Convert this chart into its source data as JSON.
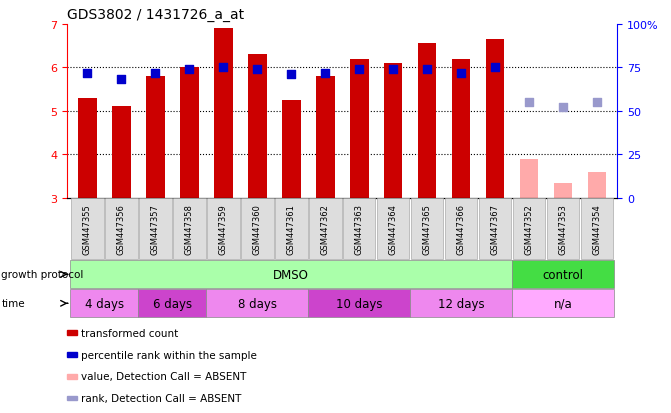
{
  "title": "GDS3802 / 1431726_a_at",
  "samples": [
    "GSM447355",
    "GSM447356",
    "GSM447357",
    "GSM447358",
    "GSM447359",
    "GSM447360",
    "GSM447361",
    "GSM447362",
    "GSM447363",
    "GSM447364",
    "GSM447365",
    "GSM447366",
    "GSM447367",
    "GSM447352",
    "GSM447353",
    "GSM447354"
  ],
  "bar_values": [
    5.3,
    5.1,
    5.8,
    6.0,
    6.9,
    6.3,
    5.25,
    5.8,
    6.2,
    6.1,
    6.55,
    6.2,
    6.65,
    3.9,
    3.35,
    3.6
  ],
  "bar_absent": [
    false,
    false,
    false,
    false,
    false,
    false,
    false,
    false,
    false,
    false,
    false,
    false,
    false,
    true,
    true,
    true
  ],
  "percentile_right": [
    72,
    68,
    72,
    74,
    75,
    74,
    71,
    72,
    74,
    74,
    74,
    72,
    75,
    55,
    52,
    55
  ],
  "percentile_absent": [
    false,
    false,
    false,
    false,
    false,
    false,
    false,
    false,
    false,
    false,
    false,
    false,
    false,
    true,
    true,
    true
  ],
  "bar_color_present": "#cc0000",
  "bar_color_absent": "#ffaaaa",
  "dot_color_present": "#0000cc",
  "dot_color_absent": "#9999cc",
  "ylim_left": [
    3,
    7
  ],
  "ylim_right": [
    0,
    100
  ],
  "yticks_left": [
    3,
    4,
    5,
    6,
    7
  ],
  "yticks_right": [
    0,
    25,
    50,
    75,
    100
  ],
  "ytick_labels_right": [
    "0",
    "25",
    "50",
    "75",
    "100%"
  ],
  "bar_width": 0.55,
  "dot_size": 28,
  "groups_gp": [
    {
      "label": "DMSO",
      "start": 0,
      "end": 13,
      "color": "#aaffaa"
    },
    {
      "label": "control",
      "start": 13,
      "end": 16,
      "color": "#44dd44"
    }
  ],
  "groups_time": [
    {
      "label": "4 days",
      "start": 0,
      "end": 2,
      "color": "#ee88ee"
    },
    {
      "label": "6 days",
      "start": 2,
      "end": 4,
      "color": "#cc44cc"
    },
    {
      "label": "8 days",
      "start": 4,
      "end": 7,
      "color": "#ee88ee"
    },
    {
      "label": "10 days",
      "start": 7,
      "end": 10,
      "color": "#cc44cc"
    },
    {
      "label": "12 days",
      "start": 10,
      "end": 13,
      "color": "#ee88ee"
    },
    {
      "label": "n/a",
      "start": 13,
      "end": 16,
      "color": "#ffaaff"
    }
  ],
  "legend_items": [
    {
      "label": "transformed count",
      "color": "#cc0000"
    },
    {
      "label": "percentile rank within the sample",
      "color": "#0000cc"
    },
    {
      "label": "value, Detection Call = ABSENT",
      "color": "#ffaaaa"
    },
    {
      "label": "rank, Detection Call = ABSENT",
      "color": "#9999cc"
    }
  ],
  "fig_width": 6.71,
  "fig_height": 4.14,
  "dpi": 100
}
